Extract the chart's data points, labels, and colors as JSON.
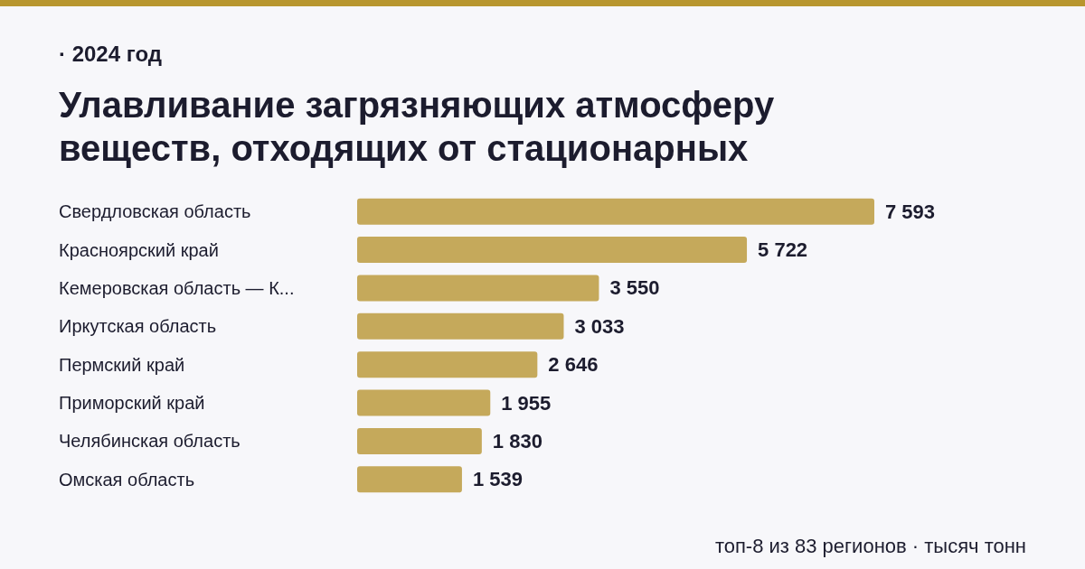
{
  "chart_data": {
    "type": "bar",
    "orientation": "horizontal",
    "title": "Улавливание загрязняющих атмосферу веществ, отходящих от стационарных",
    "subtitle": "· 2024 год",
    "categories": [
      "Свердловская область",
      "Красноярский край",
      "Кемеровская область — К...",
      "Иркутская область",
      "Пермский край",
      "Приморский край",
      "Челябинская область",
      "Омская область"
    ],
    "values": [
      7593,
      5722,
      3550,
      3033,
      2646,
      1955,
      1830,
      1539
    ],
    "value_labels": [
      "7 593",
      "5 722",
      "3 550",
      "3 033",
      "2 646",
      "1 955",
      "1 830",
      "1 539"
    ],
    "color": "#c5a95b",
    "annotations": [
      "топ-8 из 83 регионов · тысяч тонн"
    ]
  }
}
